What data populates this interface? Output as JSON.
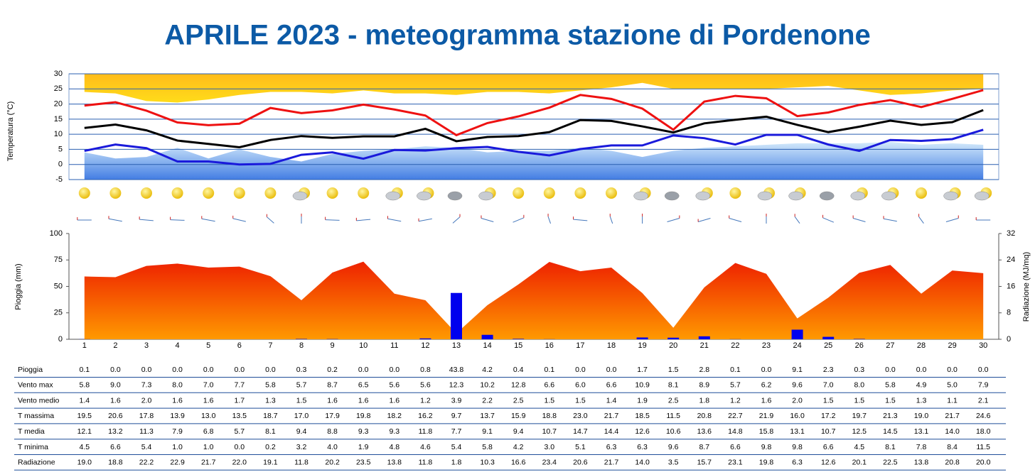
{
  "title": "APRILE 2023 - meteogramma  stazione di Pordenone",
  "chart_data": [
    {
      "type": "line",
      "ylabel": "Temperatura (°C)",
      "ylim": [
        -5,
        30
      ],
      "yticks": [
        -5,
        0,
        5,
        10,
        15,
        20,
        25,
        30
      ],
      "grid": true,
      "series": [
        {
          "name": "T massima",
          "color": "#ee1111",
          "values": [
            19.5,
            20.6,
            17.8,
            13.9,
            13.0,
            13.5,
            18.7,
            17.0,
            17.9,
            19.8,
            18.2,
            16.2,
            9.7,
            13.7,
            15.9,
            18.8,
            23.0,
            21.7,
            18.5,
            11.5,
            20.8,
            22.7,
            21.9,
            16.0,
            17.2,
            19.7,
            21.3,
            19.0,
            21.7,
            24.6
          ],
          "value_labels": [
            "19.5",
            "20.6",
            "17.8",
            "13.9",
            "13.0",
            "13.5",
            "18.7",
            "17.0",
            "17.9",
            "19.8",
            "18.2",
            "16.2",
            "9.7",
            "13.7",
            "15.9",
            "18.8",
            "23.0",
            "21.7",
            "18.5",
            "11.5",
            "20.8",
            "22.7",
            "21.9",
            "16.0",
            "17.2",
            "19.7",
            "21.3",
            "19.0",
            "21.7",
            "24.6"
          ]
        },
        {
          "name": "T media",
          "color": "#000000",
          "values": [
            12.1,
            13.2,
            11.3,
            7.9,
            6.8,
            5.7,
            8.1,
            9.4,
            8.8,
            9.3,
            9.3,
            11.8,
            7.7,
            9.1,
            9.4,
            10.7,
            14.7,
            14.4,
            12.6,
            10.6,
            13.6,
            14.8,
            15.8,
            13.1,
            10.7,
            12.5,
            14.5,
            13.1,
            14.0,
            18.0
          ],
          "value_labels": [
            "12.1",
            "13.2",
            "11.3",
            "7.9",
            "6.8",
            "5.7",
            "8.1",
            "9.4",
            "8.8",
            "9.3",
            "9.3",
            "11.8",
            "7.7",
            "9.1",
            "9.4",
            "10.7",
            "14.7",
            "14.4",
            "12.6",
            "10.6",
            "13.6",
            "14.8",
            "15.8",
            "13.1",
            "10.7",
            "12.5",
            "14.5",
            "13.1",
            "14.0",
            "18.0"
          ]
        },
        {
          "name": "T minima",
          "color": "#1a1adb",
          "values": [
            4.5,
            6.6,
            5.4,
            1.0,
            1.0,
            0.0,
            0.2,
            3.2,
            4.0,
            1.9,
            4.8,
            4.6,
            5.4,
            5.8,
            4.2,
            3.0,
            5.1,
            6.3,
            6.3,
            9.6,
            8.7,
            6.6,
            9.8,
            9.8,
            6.6,
            4.5,
            8.1,
            7.8,
            8.4,
            11.5
          ],
          "value_labels": [
            "4.5",
            "6.6",
            "5.4",
            "1.0",
            "1.0",
            "0.0",
            "0.2",
            "3.2",
            "4.0",
            "1.9",
            "4.8",
            "4.6",
            "5.4",
            "5.8",
            "4.2",
            "3.0",
            "5.1",
            "6.3",
            "6.3",
            "9.6",
            "8.7",
            "6.6",
            "9.8",
            "9.8",
            "6.6",
            "4.5",
            "8.1",
            "7.8",
            "8.4",
            "11.5"
          ]
        }
      ],
      "areas": [
        {
          "color": "#ffc800",
          "fill_to": "top",
          "values": [
            24,
            23.5,
            21,
            20.5,
            21.5,
            23,
            24,
            24,
            23.5,
            24.5,
            23.5,
            23.5,
            23,
            24,
            24,
            23.5,
            24.5,
            25.5,
            27,
            25,
            25,
            25,
            25,
            25.5,
            26,
            24.5,
            23,
            23.5,
            24.5,
            25
          ]
        },
        {
          "color": "#5fa8f0",
          "fill_to": "bottom",
          "values": [
            4,
            2,
            2.5,
            5.5,
            2,
            5,
            2.5,
            1,
            3.5,
            4.5,
            5,
            6,
            5.5,
            4,
            4.5,
            4.5,
            5.5,
            4.5,
            2.5,
            4.5,
            5.5,
            6,
            6.5,
            7,
            7,
            7,
            7.5,
            6.5,
            7,
            6.5
          ]
        }
      ]
    },
    {
      "type": "bar",
      "ylabel": "Pioggia (mm)",
      "y2label": "Radiazione (MJ/mq)",
      "categories": [
        "1",
        "2",
        "3",
        "4",
        "5",
        "6",
        "7",
        "8",
        "9",
        "10",
        "11",
        "12",
        "13",
        "14",
        "15",
        "16",
        "17",
        "18",
        "19",
        "20",
        "21",
        "22",
        "23",
        "24",
        "25",
        "26",
        "27",
        "28",
        "29",
        "30"
      ],
      "ylim": [
        0,
        100
      ],
      "yticks": [
        0,
        25,
        50,
        75,
        100
      ],
      "y2lim": [
        0,
        32
      ],
      "y2ticks": [
        0,
        8,
        16,
        24,
        32
      ],
      "series": [
        {
          "name": "Pioggia",
          "color": "#0000ee",
          "values": [
            0.1,
            0.0,
            0.0,
            0.0,
            0.0,
            0.0,
            0.0,
            0.3,
            0.2,
            0.0,
            0.0,
            0.8,
            43.8,
            4.2,
            0.4,
            0.1,
            0.0,
            0.0,
            1.7,
            1.5,
            2.8,
            0.1,
            0.0,
            9.1,
            2.3,
            0.3,
            0.0,
            0.0,
            0.0,
            0.0
          ],
          "value_labels": [
            "0.1",
            "0.0",
            "0.0",
            "0.0",
            "0.0",
            "0.0",
            "0.0",
            "0.3",
            "0.2",
            "0.0",
            "0.0",
            "0.8",
            "43.8",
            "4.2",
            "0.4",
            "0.1",
            "0.0",
            "0.0",
            "1.7",
            "1.5",
            "2.8",
            "0.1",
            "0.0",
            "9.1",
            "2.3",
            "0.3",
            "0.0",
            "0.0",
            "0.0",
            "0.0"
          ]
        },
        {
          "name": "Radiazione",
          "color": "#ff5a00",
          "axis": "y2",
          "values": [
            19.0,
            18.8,
            22.2,
            22.9,
            21.7,
            22.0,
            19.1,
            11.8,
            20.2,
            23.5,
            13.8,
            11.8,
            1.8,
            10.3,
            16.6,
            23.4,
            20.6,
            21.7,
            14.0,
            3.5,
            15.7,
            23.1,
            19.8,
            6.3,
            12.6,
            20.1,
            22.5,
            13.8,
            20.8,
            20.0
          ],
          "value_labels": [
            "19.0",
            "18.8",
            "22.2",
            "22.9",
            "21.7",
            "22.0",
            "19.1",
            "11.8",
            "20.2",
            "23.5",
            "13.8",
            "11.8",
            "1.8",
            "10.3",
            "16.6",
            "23.4",
            "20.6",
            "21.7",
            "14.0",
            "3.5",
            "15.7",
            "23.1",
            "19.8",
            "6.3",
            "12.6",
            "20.1",
            "22.5",
            "13.8",
            "20.8",
            "20.0"
          ]
        }
      ]
    }
  ],
  "table": {
    "rows": [
      {
        "name": "Vento max",
        "values": [
          5.8,
          9.0,
          7.3,
          8.0,
          7.0,
          7.7,
          5.8,
          5.7,
          8.7,
          6.5,
          5.6,
          5.6,
          12.3,
          10.2,
          12.8,
          6.6,
          6.0,
          6.6,
          10.9,
          8.1,
          8.9,
          5.7,
          6.2,
          9.6,
          7.0,
          8.0,
          5.8,
          4.9,
          5.0,
          7.9
        ],
        "value_labels": [
          "5.8",
          "9.0",
          "7.3",
          "8.0",
          "7.0",
          "7.7",
          "5.8",
          "5.7",
          "8.7",
          "6.5",
          "5.6",
          "5.6",
          "12.3",
          "10.2",
          "12.8",
          "6.6",
          "6.0",
          "6.6",
          "10.9",
          "8.1",
          "8.9",
          "5.7",
          "6.2",
          "9.6",
          "7.0",
          "8.0",
          "5.8",
          "4.9",
          "5.0",
          "7.9"
        ]
      },
      {
        "name": "Vento medio",
        "values": [
          1.4,
          1.6,
          2.0,
          1.6,
          1.6,
          1.7,
          1.3,
          1.5,
          1.6,
          1.6,
          1.6,
          1.2,
          3.9,
          2.2,
          2.5,
          1.5,
          1.5,
          1.4,
          1.9,
          2.5,
          1.8,
          1.2,
          1.6,
          2.0,
          1.5,
          1.5,
          1.5,
          1.3,
          1.1,
          2.1
        ],
        "value_labels": [
          "1.4",
          "1.6",
          "2.0",
          "1.6",
          "1.6",
          "1.7",
          "1.3",
          "1.5",
          "1.6",
          "1.6",
          "1.6",
          "1.2",
          "3.9",
          "2.2",
          "2.5",
          "1.5",
          "1.5",
          "1.4",
          "1.9",
          "2.5",
          "1.8",
          "1.2",
          "1.6",
          "2.0",
          "1.5",
          "1.5",
          "1.5",
          "1.3",
          "1.1",
          "2.1"
        ]
      }
    ]
  }
}
